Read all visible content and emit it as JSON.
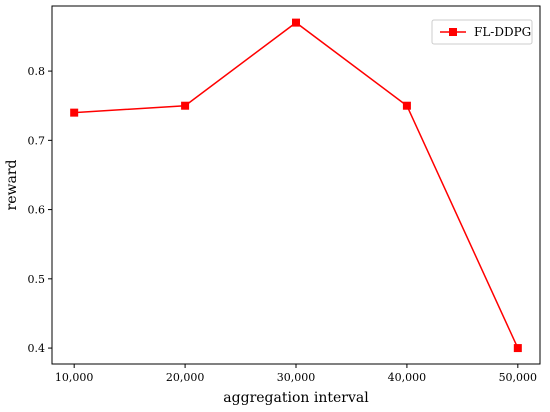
{
  "chart_data": {
    "type": "line",
    "title": "",
    "xlabel": "aggregation interval",
    "ylabel": "reward",
    "categories": [
      "10,000",
      "20,000",
      "30,000",
      "40,000",
      "50,000"
    ],
    "x": [
      10000,
      20000,
      30000,
      40000,
      50000
    ],
    "series": [
      {
        "name": "FL-DDPG",
        "color": "#ff0000",
        "marker": "square",
        "values": [
          0.74,
          0.75,
          0.87,
          0.75,
          0.4
        ]
      }
    ],
    "yticks": [
      0.4,
      0.5,
      0.6,
      0.7,
      0.8
    ],
    "ytick_labels": [
      "0.4",
      "0.5",
      "0.6",
      "0.7",
      "0.8"
    ],
    "ylim": [
      0.377,
      0.894
    ],
    "xlim": [
      8000,
      52000
    ],
    "grid": false,
    "legend_position": "top-right"
  }
}
